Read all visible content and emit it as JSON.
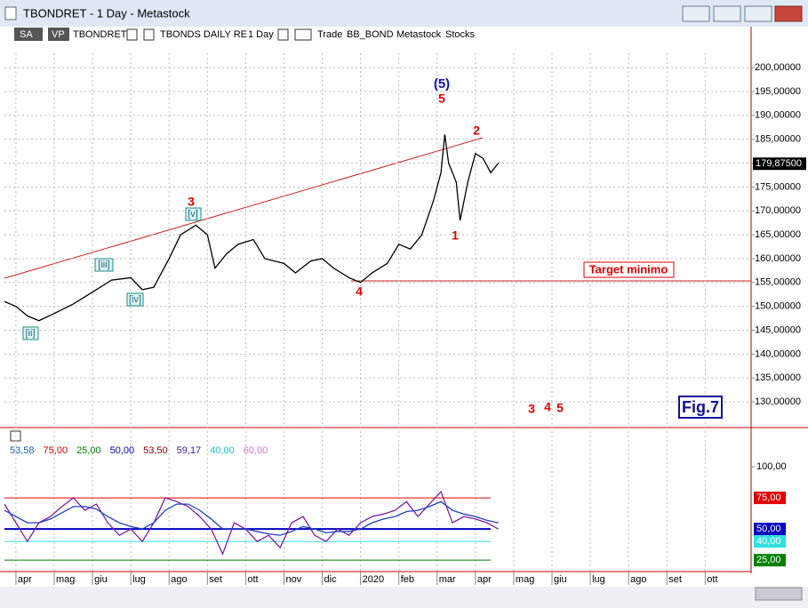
{
  "window": {
    "title": "TBONDRET - 1 Day - Metastock"
  },
  "toolbar": {
    "sa": "SA",
    "vp": "VP",
    "symbol": "TBONDRET",
    "security": "TBONDS DAILY RE",
    "period": "1 Day",
    "mode": "Trade",
    "template": "BB_BOND",
    "source": "Metastock",
    "kind": "Stocks"
  },
  "annotations": {
    "wave5_big": "(5)",
    "wave5": "5",
    "wave2": "2",
    "wave1": "1",
    "wave3": "3",
    "wave4": "4",
    "v": "[v]",
    "iii": "[iii]",
    "iv": "[iv]",
    "ii": "[ii]",
    "target": "Target minimo",
    "f3": "3",
    "f4": "4",
    "f5": "5",
    "fig": "Fig.7"
  },
  "chart_data": [
    {
      "type": "line",
      "color": "#000000",
      "x": [
        -0.3,
        0,
        0.3,
        0.6,
        1.0,
        1.5,
        2.0,
        2.5,
        3.0,
        3.3,
        3.6,
        4.0,
        4.3,
        4.7,
        5.0,
        5.2,
        5.5,
        5.8,
        6.2,
        6.5,
        7.0,
        7.3,
        7.7,
        8.0,
        8.3,
        8.7,
        9.0,
        9.3,
        9.7,
        10.0,
        10.3,
        10.6,
        10.9,
        11.1,
        11.2,
        11.3,
        11.5,
        11.6,
        11.8,
        12.0,
        12.2,
        12.4,
        12.6
      ],
      "values": [
        151,
        150,
        148,
        147,
        148.5,
        150.5,
        153,
        155.5,
        156,
        153.5,
        154,
        160,
        165,
        167,
        165,
        158,
        161,
        163,
        164,
        160,
        159,
        157,
        159.5,
        160,
        158,
        156,
        155,
        157,
        159,
        163,
        162,
        165,
        172,
        178,
        186,
        180,
        176,
        168,
        176,
        182,
        181,
        178,
        180
      ],
      "last": {
        "value": 179.875,
        "label": "179,87500"
      },
      "xlim": [
        -0.3,
        19.2
      ],
      "xticks": [
        {
          "value": 0,
          "label": "apr"
        },
        {
          "value": 1,
          "label": "mag"
        },
        {
          "value": 2,
          "label": "giu"
        },
        {
          "value": 3,
          "label": "lug"
        },
        {
          "value": 4,
          "label": "ago"
        },
        {
          "value": 5,
          "label": "set"
        },
        {
          "value": 6,
          "label": "ott"
        },
        {
          "value": 7,
          "label": "nov"
        },
        {
          "value": 8,
          "label": "dic"
        },
        {
          "value": 9,
          "label": "2020"
        },
        {
          "value": 10,
          "label": "feb"
        },
        {
          "value": 11,
          "label": "mar"
        },
        {
          "value": 12,
          "label": "apr"
        },
        {
          "value": 13,
          "label": "mag"
        },
        {
          "value": 14,
          "label": "giu"
        },
        {
          "value": 15,
          "label": "lug"
        },
        {
          "value": 16,
          "label": "ago"
        },
        {
          "value": 17,
          "label": "set"
        },
        {
          "value": 18,
          "label": "ott"
        }
      ],
      "ylim": [
        124.8,
        203
      ],
      "yticks": [
        {
          "value": 130,
          "label": "130,00000"
        },
        {
          "value": 135,
          "label": "135,00000"
        },
        {
          "value": 140,
          "label": "140,00000"
        },
        {
          "value": 145,
          "label": "145,00000"
        },
        {
          "value": 150,
          "label": "150,00000"
        },
        {
          "value": 155,
          "label": "155,00000"
        },
        {
          "value": 160,
          "label": "160,00000"
        },
        {
          "value": 165,
          "label": "165,00000"
        },
        {
          "value": 170,
          "label": "170,00000"
        },
        {
          "value": 175,
          "label": "175,00000"
        },
        {
          "value": 180,
          "label": "180,00000"
        },
        {
          "value": 185,
          "label": "185,00000"
        },
        {
          "value": 190,
          "label": "190,00000"
        },
        {
          "value": 195,
          "label": "195,00000"
        },
        {
          "value": 200,
          "label": "200,00000"
        }
      ],
      "grid": true
    },
    {
      "type": "line",
      "readout": [
        {
          "text": "53,58",
          "color": "#1a5fb4"
        },
        {
          "text": "75,00",
          "color": "#e00000"
        },
        {
          "text": "25,00",
          "color": "#008000"
        },
        {
          "text": "50,00",
          "color": "#0000c0"
        },
        {
          "text": "53,50",
          "color": "#800000"
        },
        {
          "text": "59,17",
          "color": "#4020a0"
        },
        {
          "text": "40,00",
          "color": "#20c0d0"
        },
        {
          "text": "60,00",
          "color": "#e070e0"
        }
      ],
      "x": [
        -0.3,
        0,
        0.3,
        0.6,
        0.9,
        1.2,
        1.5,
        1.8,
        2.1,
        2.4,
        2.7,
        3.0,
        3.3,
        3.6,
        3.9,
        4.2,
        4.5,
        4.8,
        5.1,
        5.4,
        5.7,
        6.0,
        6.3,
        6.6,
        6.9,
        7.2,
        7.5,
        7.8,
        8.1,
        8.4,
        8.7,
        9.0,
        9.3,
        9.6,
        9.9,
        10.2,
        10.5,
        10.8,
        11.1,
        11.4,
        11.7,
        12.0,
        12.3,
        12.6
      ],
      "series": [
        {
          "color": "#8020a0",
          "values": [
            70,
            55,
            40,
            55,
            60,
            68,
            75,
            65,
            70,
            55,
            45,
            50,
            40,
            55,
            75,
            72,
            68,
            60,
            50,
            30,
            55,
            50,
            40,
            45,
            35,
            55,
            60,
            45,
            40,
            50,
            45,
            55,
            60,
            62,
            65,
            72,
            60,
            70,
            80,
            55,
            60,
            58,
            55,
            50
          ]
        },
        {
          "color": "#2040c0",
          "values": [
            65,
            60,
            55,
            55,
            58,
            63,
            68,
            68,
            66,
            60,
            55,
            52,
            50,
            55,
            65,
            70,
            70,
            65,
            58,
            50,
            50,
            50,
            48,
            46,
            45,
            48,
            52,
            50,
            47,
            48,
            48,
            50,
            55,
            58,
            60,
            64,
            65,
            68,
            72,
            65,
            62,
            60,
            57,
            55
          ]
        }
      ],
      "levels": [
        {
          "value": 75,
          "label": "75,00",
          "color": "#e00000"
        },
        {
          "value": 50,
          "label": "50,00",
          "color": "#0000c0"
        },
        {
          "value": 40,
          "label": "40,00",
          "color": "#30e0e0"
        },
        {
          "value": 25,
          "label": "25,00",
          "color": "#008000"
        }
      ],
      "ylim": [
        18,
        125
      ],
      "yticks": [
        {
          "value": 100,
          "label": "100,00"
        }
      ]
    }
  ]
}
